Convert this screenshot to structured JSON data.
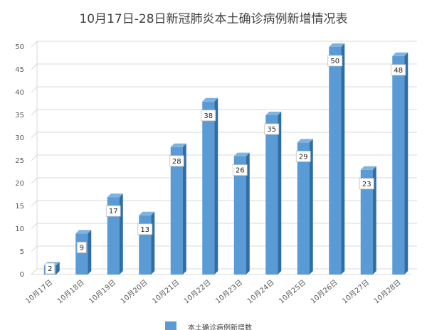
{
  "chart_data": {
    "type": "bar",
    "title": "10月17日-28日新冠肺炎本土确诊病例新增情况表",
    "categories": [
      "10月17日",
      "10月18日",
      "10月19日",
      "10月20日",
      "10月21日",
      "10月22日",
      "10月23日",
      "10月24日",
      "10月25日",
      "10月26日",
      "10月27日",
      "10月28日"
    ],
    "series": [
      {
        "name": "本土确诊病例新增数",
        "values": [
          2,
          9,
          17,
          13,
          28,
          38,
          26,
          35,
          29,
          50,
          23,
          48
        ]
      }
    ],
    "ylim": [
      0,
      50
    ],
    "yticks": [
      0,
      5,
      10,
      15,
      20,
      25,
      30,
      35,
      40,
      45,
      50
    ],
    "grid": true,
    "legend_position": "bottom",
    "colors": {
      "bar_front": "#5b9bd5",
      "bar_side": "#2e6ea6",
      "bar_top": "#7fb2e0",
      "gridline": "#d9d9d9"
    }
  }
}
